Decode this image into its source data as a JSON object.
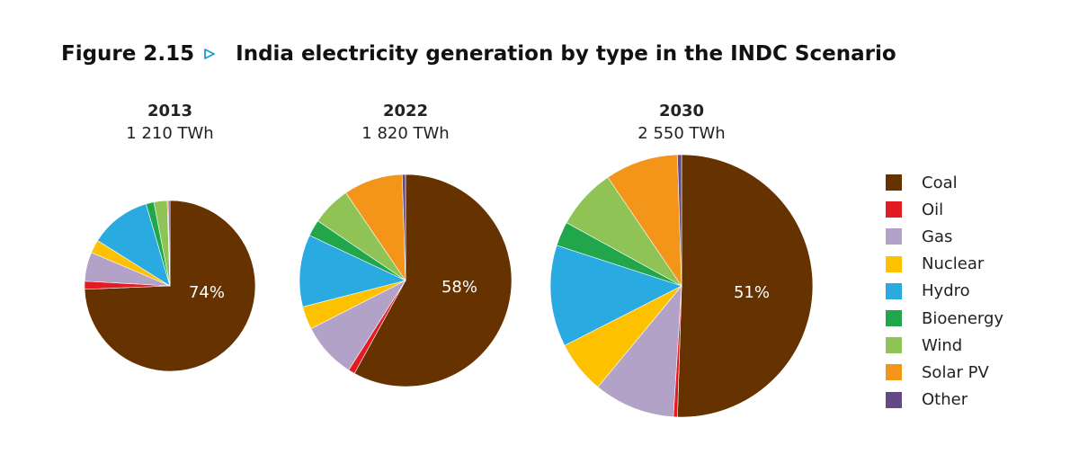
{
  "header": {
    "figure_label": "Figure 2.15",
    "title": "India electricity generation by type in the INDC Scenario",
    "arrow_color": "#1a9bd7"
  },
  "chart_data": {
    "type": "pie",
    "categories": [
      "Coal",
      "Oil",
      "Gas",
      "Nuclear",
      "Hydro",
      "Bioenergy",
      "Wind",
      "Solar PV",
      "Other"
    ],
    "colors": [
      "#663300",
      "#e31b23",
      "#b3a2c7",
      "#fdc100",
      "#29abe2",
      "#21a64b",
      "#8fc356",
      "#f39519",
      "#634a85"
    ],
    "charts": [
      {
        "year": "2013",
        "total_label": "1 210 TWh",
        "total": 1210,
        "label": "74%",
        "values": [
          74,
          1.5,
          5.5,
          2.5,
          11.5,
          1.5,
          2.5,
          0.2,
          0.3
        ]
      },
      {
        "year": "2022",
        "total_label": "1 820 TWh",
        "total": 1820,
        "label": "58%",
        "values": [
          58,
          1,
          8.5,
          3.5,
          11,
          2.5,
          6,
          9,
          0.5
        ]
      },
      {
        "year": "2030",
        "total_label": "2 550 TWh",
        "total": 2550,
        "label": "51%",
        "values": [
          50.5,
          0.5,
          10,
          6.5,
          12.5,
          3,
          7.5,
          9,
          0.5
        ]
      }
    ]
  }
}
